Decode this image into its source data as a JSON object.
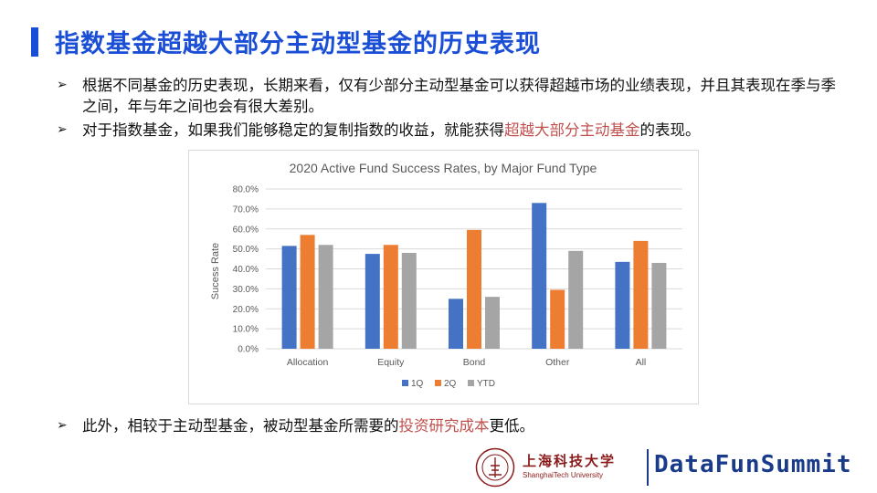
{
  "header": {
    "title": "指数基金超越大部分主动型基金的历史表现"
  },
  "bullets": [
    {
      "arrow": "➢",
      "text": "根据不同基金的历史表现，长期来看，仅有少部分主动型基金可以获得超越市场的业绩表现，并且其表现在季与季之间，年与年之间也会有很大差别。"
    },
    {
      "arrow": "➢",
      "pre": "对于指数基金，如果我们能够稳定的复制指数的收益，就能获得",
      "hl": "超越大部分主动基金",
      "post": "的表现。"
    },
    {
      "arrow": "➢",
      "pre": "此外，相较于主动型基金，被动型基金所需要的",
      "hl": "投资研究成本",
      "post": "更低。"
    }
  ],
  "chart_data": {
    "type": "bar",
    "title": "2020 Active Fund Success Rates, by Major Fund Type",
    "ylabel": "Sucess Rate",
    "categories": [
      "Allocation",
      "Equity",
      "Bond",
      "Other",
      "All"
    ],
    "ylim": [
      0,
      80
    ],
    "yticks": [
      "0.0%",
      "10.0%",
      "20.0%",
      "30.0%",
      "40.0%",
      "50.0%",
      "60.0%",
      "70.0%",
      "80.0%"
    ],
    "grid": true,
    "legend_position": "bottom",
    "series": [
      {
        "name": "1Q",
        "color": "#4472c4",
        "values": [
          51.5,
          47.5,
          25,
          73,
          43.5
        ]
      },
      {
        "name": "2Q",
        "color": "#ed7d31",
        "values": [
          57,
          52,
          59.5,
          29.5,
          54
        ]
      },
      {
        "name": "YTD",
        "color": "#a5a5a5",
        "values": [
          52,
          48,
          26,
          49,
          43
        ]
      }
    ]
  },
  "footer": {
    "university_cn": "上海科技大学",
    "university_en": "ShanghaiTech University",
    "brand": "DataFunSummit",
    "seal_icon": "university-seal-icon"
  },
  "colors": {
    "accent": "#1a4ed6",
    "highlight": "#c0504d",
    "brand": "#1a3a8a"
  }
}
